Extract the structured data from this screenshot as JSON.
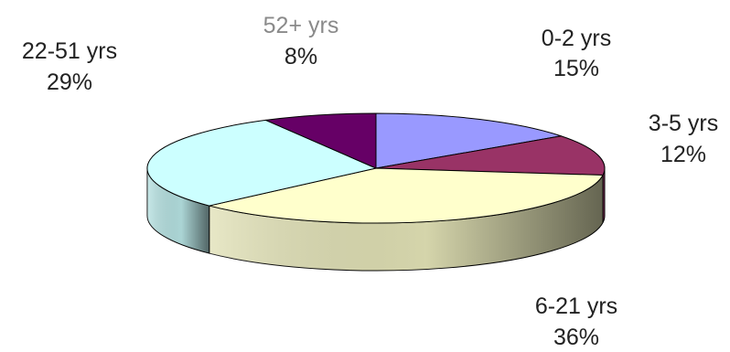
{
  "chart_data": {
    "type": "pie",
    "style": "3d",
    "legend": "none",
    "slices": [
      {
        "label": "0-2 yrs",
        "percent": "15%",
        "value": 15,
        "color": "#9999ff"
      },
      {
        "label": "3-5 yrs",
        "percent": "12%",
        "value": 12,
        "color": "#993366"
      },
      {
        "label": "6-21 yrs",
        "percent": "36%",
        "value": 36,
        "color": "#ffffcc"
      },
      {
        "label": "22-51 yrs",
        "percent": "29%",
        "value": 29,
        "color": "#ccffff"
      },
      {
        "label": "52+ yrs",
        "percent": "8%",
        "value": 8,
        "color": "#660066"
      }
    ]
  }
}
